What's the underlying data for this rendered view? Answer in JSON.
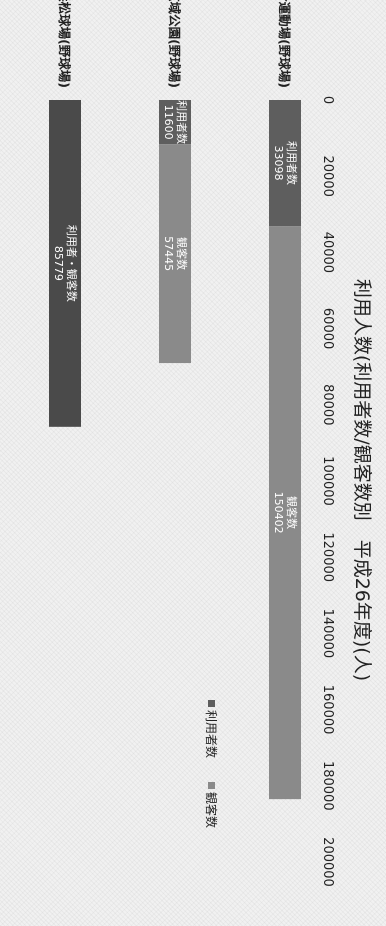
{
  "chart_data": {
    "type": "bar",
    "title": "利用人数(利用者数/観客数別　平成26年度)(人)",
    "categories": [
      "真亀総合運動場(野球場)",
      "愛鷹広域公園(野球場)",
      "四ツ池公園浜松球場(野球場)"
    ],
    "xlim": [
      0,
      200000
    ],
    "ticks": [
      0,
      20000,
      40000,
      60000,
      80000,
      100000,
      120000,
      140000,
      160000,
      180000,
      200000
    ],
    "tick_labels": [
      "0",
      "20000",
      "40000",
      "60000",
      "80000",
      "100000",
      "120000",
      "140000",
      "160000",
      "180000",
      "200000"
    ],
    "legend": [
      "利用者数",
      "観客数"
    ],
    "legend_position": "right",
    "series": [
      {
        "name": "利用者数",
        "color": "#5e5e5e",
        "values": [
          33098,
          11600,
          null
        ],
        "data_labels": [
          [
            "利用者数",
            "33098"
          ],
          [
            "利用者数",
            "11600"
          ],
          null
        ]
      },
      {
        "name": "観客数",
        "color": "#8a8a8a",
        "values": [
          150402,
          57445,
          null
        ],
        "data_labels": [
          [
            "観客数",
            "150402"
          ],
          [
            "観客数",
            "57445"
          ],
          null
        ]
      },
      {
        "name": "利用者・観客数",
        "color": "#4a4a4a",
        "values": [
          null,
          null,
          85779
        ],
        "data_labels": [
          null,
          null,
          [
            "利用者・観客数",
            "85779"
          ]
        ]
      }
    ]
  }
}
